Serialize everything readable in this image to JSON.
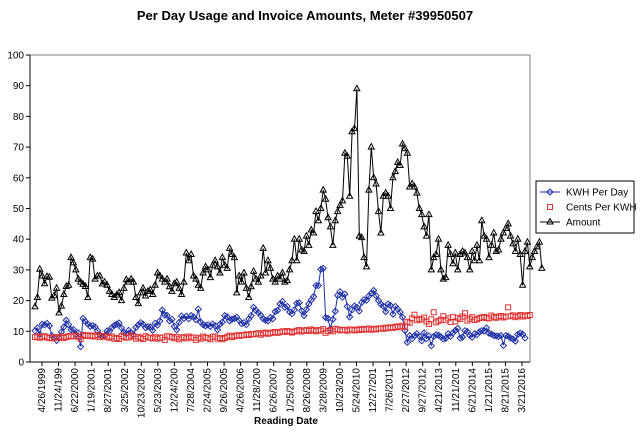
{
  "chart_data": {
    "type": "line",
    "title": "Per Day Usage and Invoice Amounts, Meter #39950507",
    "xlabel": "Reading Date",
    "ylabel": "",
    "ylim": [
      0,
      100
    ],
    "yticks": [
      0,
      10,
      20,
      30,
      40,
      50,
      60,
      70,
      80,
      90,
      100
    ],
    "grid": false,
    "legend_position": "right",
    "x_tick_labels": [
      "4/26/1999",
      "11/24/199",
      "6/22/2000",
      "1/19/2001",
      "8/27/2001",
      "3/25/2002",
      "10/23/2002",
      "5/23/2003",
      "12/24/200",
      "7/28/2004",
      "2/24/2005",
      "9/26/2005",
      "4/26/2006",
      "11/28/200",
      "6/26/2007",
      "1/25/2008",
      "8/26/2008",
      "3/28/2009",
      "10/23/200",
      "5/24/2010",
      "12/27/201",
      "7/26/2011",
      "2/27/2012",
      "9/27/2012",
      "4/21/2013",
      "11/21/201",
      "6/21/2014",
      "1/21/2015",
      "8/21/2015",
      "3/21/2016"
    ],
    "series": [
      {
        "name": "KWH Per Day",
        "color": "#1F2FA6",
        "marker": "diamond",
        "values": [
          10.2,
          11.1,
          9.0,
          12.3,
          12.1,
          12.6,
          11.8,
          8.6,
          7.9,
          7.0,
          7.9,
          9.8,
          11.4,
          13.6,
          12.2,
          10.5,
          10.6,
          9.0,
          9.5,
          5.0,
          14.2,
          13.2,
          12.4,
          11.6,
          11.9,
          11.4,
          10.2,
          8.9,
          8.3,
          8.6,
          10.1,
          10.0,
          11.2,
          11.9,
          12.3,
          12.7,
          11.1,
          9.6,
          9.2,
          10.3,
          9.6,
          8.9,
          11.2,
          12.1,
          12.8,
          12.3,
          11.2,
          11.5,
          11.4,
          10.3,
          12.6,
          12.0,
          13.4,
          16.9,
          15.3,
          15.2,
          13.4,
          13.9,
          11.6,
          10.5,
          12.9,
          15.0,
          14.2,
          14.9,
          14.1,
          15.1,
          14.7,
          13.8,
          17.2,
          13.0,
          12.1,
          11.8,
          12.1,
          11.6,
          12.4,
          11.8,
          10.5,
          12.3,
          13.0,
          15.1,
          14.7,
          13.4,
          13.9,
          14.2,
          14.6,
          13.5,
          12.5,
          12.8,
          12.2,
          14.0,
          15.1,
          17.8,
          16.8,
          16.1,
          15.2,
          14.1,
          13.6,
          13.4,
          14.5,
          14.1,
          16.4,
          16.8,
          18.9,
          19.7,
          17.8,
          18.1,
          16.3,
          15.7,
          17.0,
          19.1,
          19.3,
          16.7,
          15.1,
          17.1,
          18.9,
          20.2,
          21.3,
          24.9,
          24.9,
          30.2,
          30.5,
          14.5,
          14.2,
          10.8,
          13.9,
          16.5,
          21.7,
          22.9,
          21.1,
          22.1,
          18.1,
          14.7,
          17.0,
          18.2,
          17.8,
          16.6,
          19.4,
          20.3,
          20.1,
          21.5,
          22.4,
          23.3,
          21.6,
          20.0,
          18.8,
          18.2,
          16.4,
          18.9,
          18.4,
          15.6,
          18.1,
          17.2,
          16.2,
          14.6,
          10.2,
          6.4,
          8.6,
          7.6,
          8.6,
          9.2,
          8.4,
          6.9,
          9.5,
          7.6,
          8.5,
          5.3,
          8.3,
          8.9,
          8.7,
          8.2,
          7.5,
          7.7,
          9.2,
          8.4,
          9.5,
          10.3,
          10.9,
          7.8,
          8.1,
          10.2,
          9.9,
          8.7,
          8.1,
          9.2,
          8.9,
          9.8,
          10.2,
          10.1,
          11.1,
          9.4,
          9.1,
          8.6,
          8.5,
          8.3,
          8.6,
          5.4,
          8.6,
          8.4,
          7.8,
          7.5,
          6.8,
          9.0,
          9.4,
          9.1,
          7.8
        ]
      },
      {
        "name": "Cents Per KWH",
        "color": "#E03030",
        "marker": "square",
        "values": [
          8.1,
          8.3,
          7.9,
          8.2,
          8.4,
          8.0,
          7.8,
          7.7,
          7.9,
          8.1,
          8.0,
          8.3,
          7.8,
          8.1,
          8.5,
          8.3,
          8.4,
          8.6,
          8.2,
          7.5,
          8.8,
          8.5,
          8.7,
          8.4,
          8.6,
          8.3,
          8.8,
          8.1,
          8.5,
          8.3,
          8.2,
          7.9,
          8.3,
          7.6,
          7.8,
          7.5,
          8.4,
          8.2,
          7.9,
          8.0,
          8.6,
          8.3,
          7.6,
          8.2,
          7.8,
          7.5,
          8.4,
          8.0,
          7.9,
          7.7,
          8.1,
          7.6,
          7.9,
          8.0,
          7.2,
          8.4,
          8.3,
          8.1,
          7.7,
          8.2,
          7.4,
          7.9,
          8.1,
          7.7,
          8.3,
          7.9,
          8.0,
          7.2,
          7.9,
          7.6,
          8.3,
          7.9,
          7.8,
          7.4,
          8.2,
          8.3,
          7.6,
          7.8,
          7.4,
          7.8,
          8.2,
          8.6,
          8.1,
          8.4,
          8.7,
          8.5,
          8.8,
          8.7,
          9.0,
          8.8,
          9.1,
          9.0,
          9.2,
          9.4,
          8.9,
          9.3,
          9.6,
          9.2,
          9.4,
          9.6,
          9.8,
          9.5,
          9.7,
          10.0,
          9.8,
          10.1,
          9.9,
          9.6,
          9.9,
          10.2,
          10.4,
          9.9,
          10.2,
          10.4,
          10.1,
          10.6,
          10.3,
          10.0,
          10.4,
          10.2,
          10.7,
          9.5,
          10.1,
          10.4,
          10.0,
          10.8,
          10.6,
          10.3,
          10.5,
          10.4,
          10.2,
          10.6,
          10.5,
          10.3,
          10.6,
          10.4,
          10.8,
          10.5,
          10.7,
          10.9,
          10.5,
          10.8,
          10.6,
          10.9,
          11.0,
          10.8,
          11.2,
          11.0,
          11.3,
          11.1,
          11.4,
          11.6,
          11.3,
          11.8,
          11.5,
          13.1,
          12.8,
          14.2,
          15.4,
          13.6,
          14.0,
          13.8,
          14.5,
          13.2,
          12.4,
          13.9,
          16.2,
          12.9,
          13.4,
          13.8,
          14.9,
          13.6,
          14.2,
          13.0,
          14.6,
          13.2,
          14.4,
          14.0,
          14.8,
          15.9,
          13.5,
          14.1,
          14.6,
          13.7,
          13.9,
          14.3,
          14.5,
          14.7,
          14.3,
          14.2,
          15.1,
          14.6,
          14.4,
          14.8,
          15.0,
          14.5,
          14.8,
          17.8,
          14.9,
          15.2,
          14.6,
          14.9,
          15.3,
          14.8,
          15.2,
          15.0,
          15.3
        ]
      },
      {
        "name": "Amount",
        "color": "#000000",
        "marker": "triangle",
        "values": [
          18.0,
          21.0,
          30.2,
          28.0,
          25.5,
          27.8,
          27.6,
          20.8,
          21.6,
          24.0,
          16.0,
          18.2,
          22.0,
          24.6,
          25.0,
          34.0,
          32.3,
          30.0,
          27.0,
          26.0,
          25.3,
          24.6,
          21.0,
          34.0,
          33.5,
          27.0,
          28.0,
          28.0,
          25.4,
          26.0,
          25.0,
          23.0,
          22.0,
          21.0,
          21.8,
          22.6,
          20.0,
          24.0,
          26.8,
          26.0,
          27.0,
          26.0,
          21.0,
          19.0,
          22.5,
          24.0,
          21.5,
          23.0,
          23.5,
          22.0,
          25.0,
          29.0,
          28.0,
          27.0,
          26.0,
          27.0,
          24.5,
          23.0,
          25.5,
          26.0,
          24.0,
          22.0,
          26.0,
          35.5,
          33.0,
          35.0,
          28.0,
          27.0,
          25.0,
          24.0,
          29.0,
          31.0,
          30.0,
          27.5,
          31.5,
          33.0,
          31.0,
          29.0,
          34.0,
          31.5,
          30.5,
          37.0,
          35.0,
          34.0,
          22.5,
          28.0,
          26.0,
          29.0,
          24.0,
          21.0,
          24.5,
          29.5,
          27.0,
          26.0,
          28.0,
          37.0,
          29.0,
          33.0,
          30.5,
          27.0,
          26.0,
          28.0,
          27.0,
          29.0,
          26.0,
          26.5,
          30.0,
          33.0,
          40.0,
          33.0,
          40.0,
          36.5,
          36.0,
          41.0,
          38.0,
          43.0,
          42.0,
          49.0,
          46.0,
          50.0,
          56.0,
          53.0,
          47.0,
          44.0,
          38.0,
          46.0,
          49.0,
          51.0,
          52.5,
          68.0,
          67.0,
          54.0,
          75.0,
          76.0,
          89.0,
          41.0,
          40.5,
          34.0,
          31.0,
          56.0,
          70.0,
          60.0,
          58.0,
          49.0,
          42.0,
          54.0,
          55.0,
          54.0,
          50.0,
          60.0,
          62.0,
          65.0,
          64.0,
          71.0,
          69.5,
          68.0,
          57.0,
          58.0,
          57.0,
          55.0,
          50.0,
          48.0,
          44.0,
          41.0,
          48.0,
          30.0,
          34.0,
          35.0,
          40.0,
          30.0,
          27.0,
          27.5,
          38.0,
          35.0,
          32.0,
          35.5,
          30.0,
          35.0,
          36.0,
          35.5,
          34.0,
          30.0,
          36.0,
          33.0,
          38.0,
          33.0,
          46.0,
          41.0,
          40.0,
          34.0,
          38.0,
          42.0,
          36.0,
          36.5,
          40.0,
          42.0,
          43.5,
          45.0,
          41.0,
          38.5,
          36.0,
          40.0,
          35.0,
          25.0,
          36.0,
          39.0,
          31.0,
          34.0,
          36.0,
          37.5,
          39.0,
          30.5
        ]
      }
    ]
  }
}
